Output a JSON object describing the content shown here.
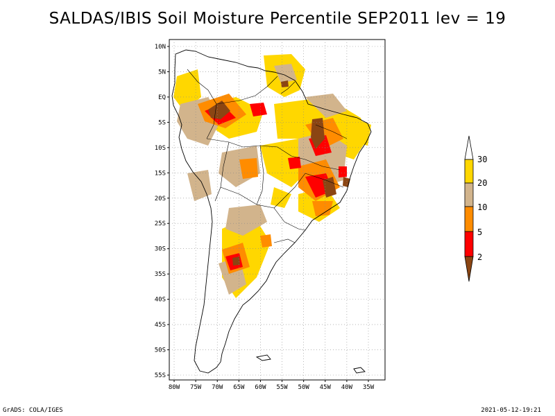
{
  "title": "SALDAS/IBIS Soil Moisture Percentile SEP2011 lev = 19",
  "footer": {
    "left": "GrADS: COLA/IGES",
    "right": "2021-05-12-19:21"
  },
  "map": {
    "lon_range": [
      -81,
      -32
    ],
    "lat_range": [
      -56,
      12
    ],
    "lat_ticks": [
      "10N",
      "5N",
      "EQ",
      "5S",
      "10S",
      "15S",
      "20S",
      "25S",
      "30S",
      "35S",
      "40S",
      "45S",
      "50S",
      "55S"
    ],
    "lon_ticks": [
      "80W",
      "75W",
      "70W",
      "65W",
      "60W",
      "55W",
      "50W",
      "45W",
      "40W",
      "35W"
    ],
    "grid": true
  },
  "colorbar": {
    "labels": [
      "30",
      "20",
      "10",
      "5",
      "2"
    ],
    "colors": [
      "#ffd700",
      "#d2b48c",
      "#ff8c00",
      "#ff0000",
      "#8b4513"
    ]
  }
}
